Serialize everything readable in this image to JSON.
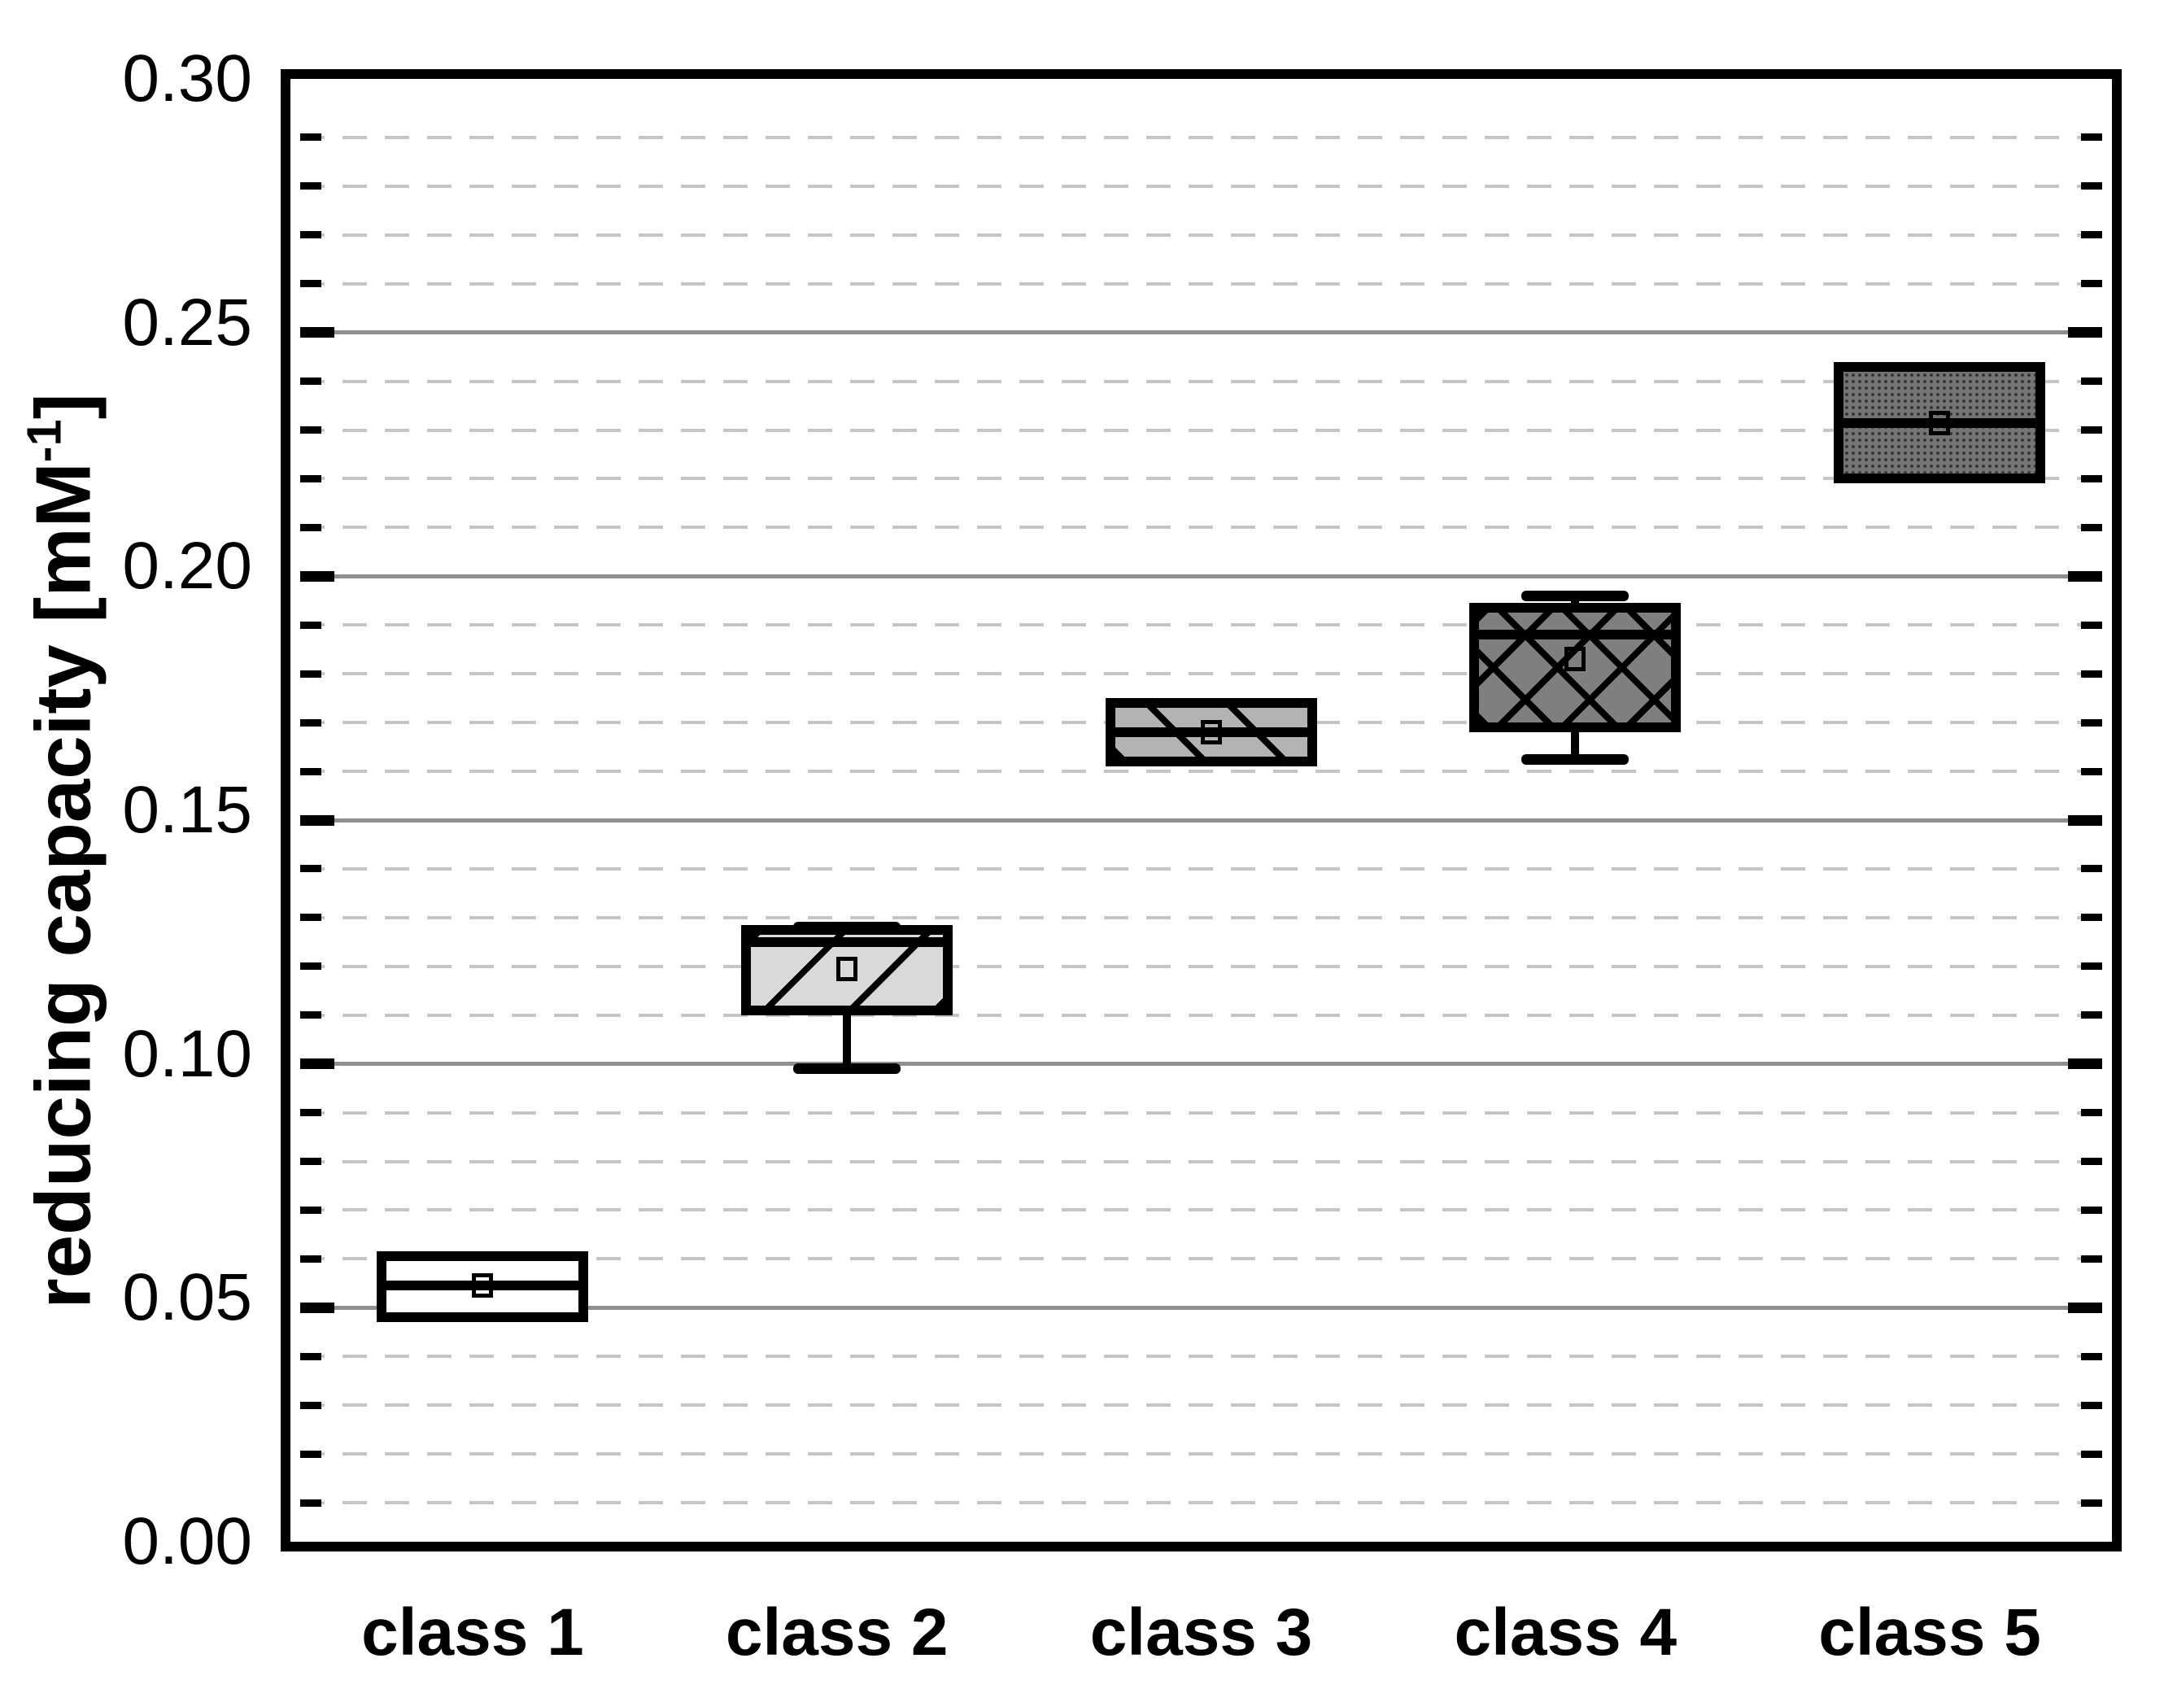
{
  "chart_data": {
    "type": "boxplot",
    "title": "",
    "xlabel": "",
    "ylabel": "reducing capacity [mM-1]",
    "ylabel_parts": {
      "main": "reducing capacity [mM",
      "sup": "-1",
      "close": "]"
    },
    "categories": [
      "class 1",
      "class 2",
      "class 3",
      "class 4",
      "class 5"
    ],
    "y_axis": {
      "min": 0.0,
      "max": 0.3,
      "major_step": 0.05,
      "minor_step": 0.01,
      "tick_labels": [
        "0.00",
        "0.05",
        "0.10",
        "0.15",
        "0.20",
        "0.25",
        "0.30"
      ]
    },
    "grid": {
      "major_style": "solid",
      "minor_style": "dashed",
      "major_color": "#8f8f8f",
      "minor_color": "#c6c6c6",
      "legend_position": "none"
    },
    "marker": "open-square-mean",
    "series": [
      {
        "label": "class 1",
        "whisker_low": null,
        "q1": 0.048,
        "median": 0.0545,
        "mean": 0.0545,
        "q3": 0.0605,
        "whisker_high": null,
        "fill": "#ffffff",
        "pattern": "none"
      },
      {
        "label": "class 2",
        "whisker_low": 0.099,
        "q1": 0.111,
        "median": 0.125,
        "mean": 0.1195,
        "q3": 0.1275,
        "whisker_high": 0.128,
        "fill": "#d9d9d9",
        "pattern": "hatch-forward"
      },
      {
        "label": "class 3",
        "whisker_low": null,
        "q1": 0.162,
        "median": 0.168,
        "mean": 0.168,
        "q3": 0.174,
        "whisker_high": null,
        "fill": "#b3b3b3",
        "pattern": "hatch-back"
      },
      {
        "label": "class 4",
        "whisker_low": 0.1625,
        "q1": 0.169,
        "median": 0.188,
        "mean": 0.183,
        "q3": 0.1935,
        "whisker_high": 0.196,
        "fill": "#7f7f7f",
        "pattern": "crosshatch"
      },
      {
        "label": "class 5",
        "whisker_low": null,
        "q1": 0.22,
        "median": 0.2315,
        "mean": 0.2315,
        "q3": 0.243,
        "whisker_high": null,
        "fill": "#747474",
        "pattern": "dots"
      }
    ]
  },
  "colors": {
    "axis": "#000000",
    "background": "#ffffff"
  }
}
